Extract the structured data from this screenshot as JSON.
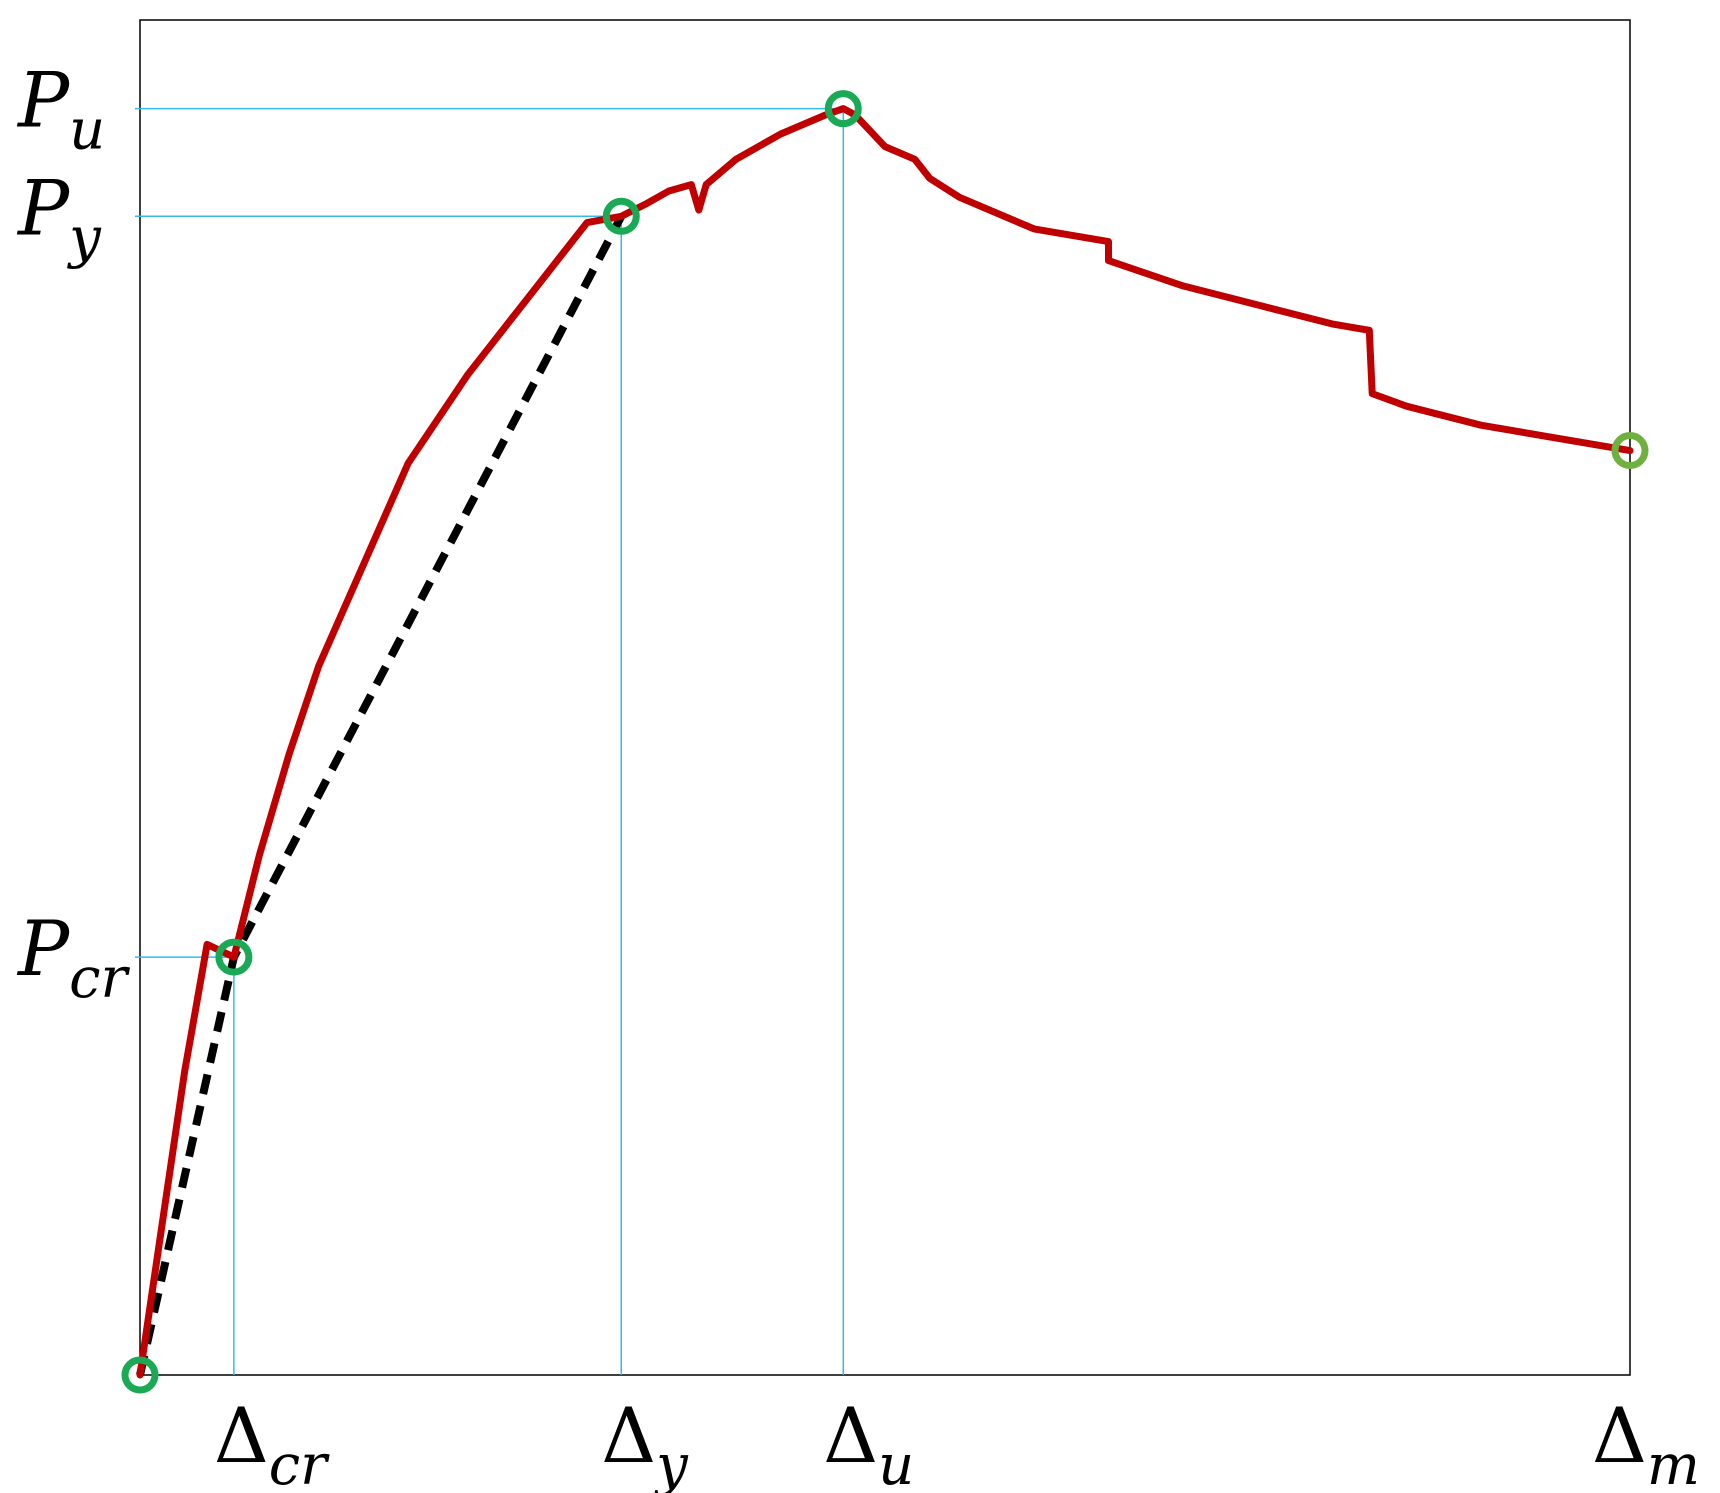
{
  "chart_data": {
    "type": "line",
    "title": "",
    "xlabel": "",
    "ylabel": "",
    "grid": false,
    "legend": "none",
    "x_scale": "relative (fraction of Δm)",
    "y_scale": "relative (fraction of Pu)",
    "xlim": [
      0,
      1
    ],
    "ylim": [
      0,
      1.07
    ],
    "colors": {
      "curve": "#c00000",
      "idealized": "#000000",
      "markers": "#1aaa55",
      "end_marker": "#70b040",
      "guides": "#33bbee",
      "frame": "#000000"
    },
    "series": [
      {
        "style": "solid",
        "x": [
          0,
          0.015,
          0.03,
          0.045,
          0.063,
          0.08,
          0.1,
          0.12,
          0.15,
          0.18,
          0.22,
          0.26,
          0.3,
          0.323,
          0.34,
          0.355,
          0.37,
          0.375,
          0.38,
          0.4,
          0.43,
          0.46,
          0.472,
          0.48,
          0.5,
          0.52,
          0.53,
          0.55,
          0.6,
          0.65,
          0.65,
          0.7,
          0.75,
          0.8,
          0.825,
          0.827,
          0.85,
          0.9,
          0.95,
          1.0
        ],
        "y": [
          0,
          0.12,
          0.24,
          0.34,
          0.33,
          0.41,
          0.49,
          0.56,
          0.64,
          0.72,
          0.79,
          0.85,
          0.91,
          0.915,
          0.925,
          0.935,
          0.94,
          0.92,
          0.94,
          0.96,
          0.98,
          0.995,
          1.0,
          0.995,
          0.97,
          0.96,
          0.945,
          0.93,
          0.905,
          0.895,
          0.88,
          0.86,
          0.845,
          0.83,
          0.825,
          0.775,
          0.765,
          0.75,
          0.74,
          0.73
        ]
      },
      {
        "style": "dashed",
        "x": [
          0,
          0.063,
          0.323
        ],
        "y": [
          0,
          0.33,
          0.915
        ]
      }
    ],
    "key_points": [
      {
        "name": "origin",
        "x": 0,
        "y": 0
      },
      {
        "name": "cracking",
        "x": 0.063,
        "y": 0.33
      },
      {
        "name": "yield",
        "x": 0.323,
        "y": 0.915
      },
      {
        "name": "ultimate",
        "x": 0.472,
        "y": 1.0
      },
      {
        "name": "maximum",
        "x": 1.0,
        "y": 0.73
      }
    ],
    "x_ticks": [
      {
        "main": "Δ",
        "sub": "cr",
        "x": 0.063
      },
      {
        "main": "Δ",
        "sub": "y",
        "x": 0.323
      },
      {
        "main": "Δ",
        "sub": "u",
        "x": 0.472
      },
      {
        "main": "Δ",
        "sub": "m",
        "x": 1.0
      }
    ],
    "y_ticks": [
      {
        "main": "P",
        "sub": "u",
        "y": 1.0
      },
      {
        "main": "P",
        "sub": "y",
        "y": 0.915
      },
      {
        "main": "P",
        "sub": "cr",
        "y": 0.33
      }
    ]
  }
}
